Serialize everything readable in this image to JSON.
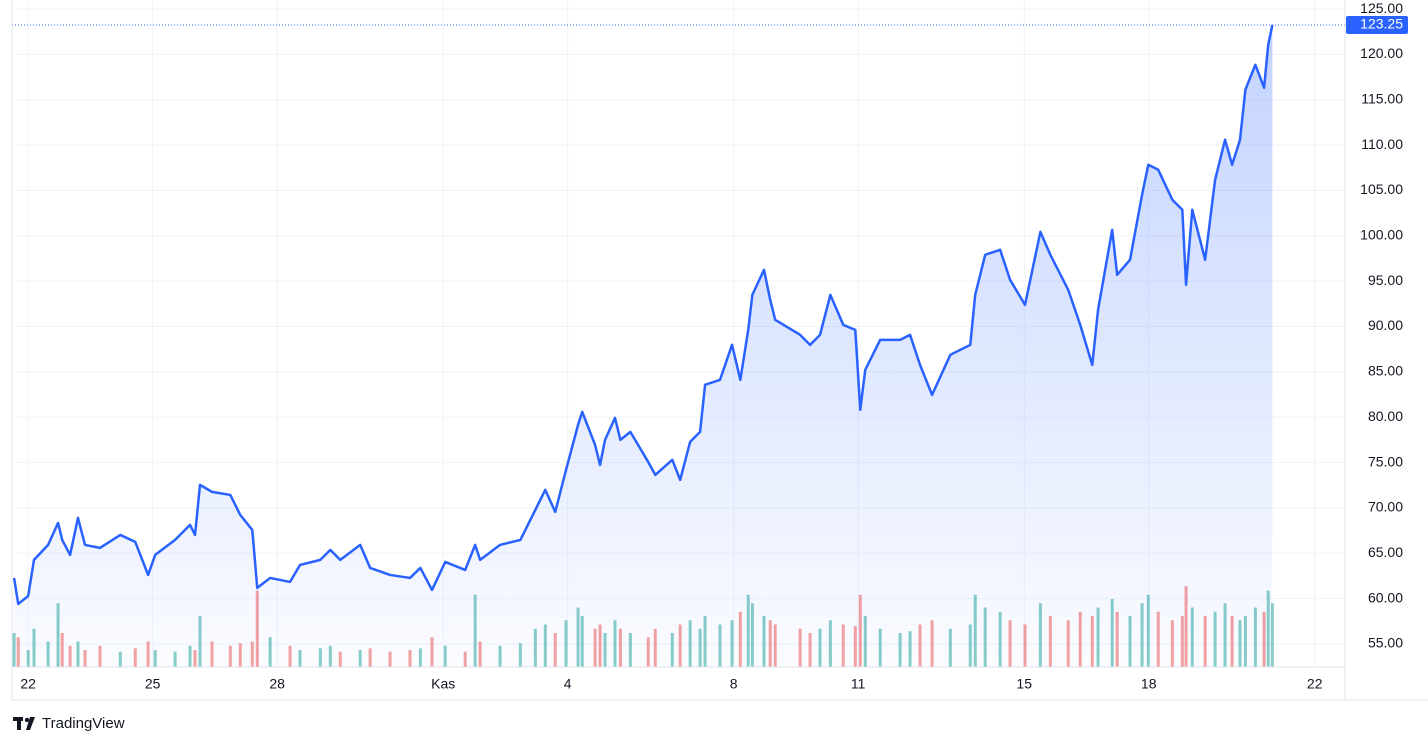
{
  "chart_data": {
    "type": "area",
    "brand": "TradingView",
    "color": "#2962ff",
    "up_color": "#26a69a",
    "down_color": "#ef5350",
    "last_price": 123.25,
    "grid": true,
    "xlim": [
      -0.39,
      31.73
    ],
    "ylim": [
      52.46,
      126
    ],
    "volume_lim": [
      0,
      100
    ],
    "xticks": [
      {
        "value": 0,
        "label": "22"
      },
      {
        "value": 3,
        "label": "25"
      },
      {
        "value": 6,
        "label": "28"
      },
      {
        "value": 10,
        "label": "Kas"
      },
      {
        "value": 13,
        "label": "4"
      },
      {
        "value": 17,
        "label": "8"
      },
      {
        "value": 20,
        "label": "11"
      },
      {
        "value": 24,
        "label": "15"
      },
      {
        "value": 27,
        "label": "18"
      },
      {
        "value": 31,
        "label": "22"
      }
    ],
    "yticks": [
      {
        "value": 55,
        "label": "55.00"
      },
      {
        "value": 60,
        "label": "60.00"
      },
      {
        "value": 65,
        "label": "65.00"
      },
      {
        "value": 70,
        "label": "70.00"
      },
      {
        "value": 75,
        "label": "75.00"
      },
      {
        "value": 80,
        "label": "80.00"
      },
      {
        "value": 85,
        "label": "85.00"
      },
      {
        "value": 90,
        "label": "90.00"
      },
      {
        "value": 95,
        "label": "95.00"
      },
      {
        "value": 100,
        "label": "100.00"
      },
      {
        "value": 105,
        "label": "105.00"
      },
      {
        "value": 110,
        "label": "110.00"
      },
      {
        "value": 115,
        "label": "115.00"
      },
      {
        "value": 120,
        "label": "120.00"
      },
      {
        "value": 125,
        "label": "125.00"
      }
    ],
    "x": [
      -0.34,
      -0.24,
      0,
      0.14,
      0.48,
      0.72,
      0.82,
      1.01,
      1.2,
      1.37,
      1.73,
      2.22,
      2.58,
      2.89,
      3.06,
      3.54,
      3.9,
      4.02,
      4.14,
      4.43,
      4.87,
      5.11,
      5.4,
      5.52,
      5.83,
      6.31,
      6.55,
      7.04,
      7.28,
      7.52,
      8,
      8.24,
      8.72,
      9.2,
      9.45,
      9.73,
      10.05,
      10.53,
      10.77,
      10.89,
      11.37,
      11.86,
      12.22,
      12.46,
      12.7,
      12.96,
      13.25,
      13.35,
      13.66,
      13.78,
      13.9,
      14.14,
      14.27,
      14.51,
      14.94,
      15.11,
      15.52,
      15.71,
      15.95,
      16.19,
      16.31,
      16.67,
      16.96,
      17.16,
      17.35,
      17.45,
      17.73,
      17.88,
      18,
      18.6,
      18.84,
      19.08,
      19.33,
      19.64,
      19.93,
      20.05,
      20.17,
      20.53,
      21.01,
      21.25,
      21.49,
      21.78,
      22.22,
      22.7,
      22.82,
      23.06,
      23.42,
      23.66,
      24.02,
      24.39,
      24.63,
      25.06,
      25.35,
      25.64,
      25.78,
      26.12,
      26.24,
      26.55,
      26.84,
      26.99,
      27.23,
      27.57,
      27.81,
      27.9,
      28.05,
      28.36,
      28.6,
      28.84,
      29.01,
      29.2,
      29.33,
      29.57,
      29.78,
      29.88,
      29.98
    ],
    "values": [
      62.28,
      59.41,
      60.29,
      64.27,
      65.92,
      68.35,
      66.47,
      64.82,
      68.9,
      65.92,
      65.59,
      67.02,
      66.25,
      62.61,
      64.82,
      66.47,
      68.13,
      67.02,
      72.54,
      71.77,
      71.43,
      69.23,
      67.57,
      61.18,
      62.28,
      61.84,
      63.71,
      64.27,
      65.37,
      64.27,
      65.92,
      63.38,
      62.61,
      62.28,
      63.38,
      60.96,
      64.04,
      63.16,
      65.92,
      64.27,
      65.92,
      66.47,
      69.78,
      71.99,
      69.56,
      74.19,
      79.16,
      80.59,
      76.95,
      74.74,
      77.5,
      79.93,
      77.5,
      78.38,
      75.07,
      73.64,
      75.3,
      73.09,
      77.28,
      78.38,
      83.57,
      84.12,
      87.98,
      84.12,
      89.63,
      93.49,
      96.25,
      92.94,
      90.74,
      89.08,
      87.98,
      89.08,
      93.49,
      90.18,
      89.63,
      80.81,
      85.22,
      88.53,
      88.53,
      89.08,
      85.77,
      82.46,
      86.88,
      87.98,
      93.49,
      97.91,
      98.46,
      95.15,
      92.39,
      100.44,
      97.91,
      94.05,
      90.18,
      85.77,
      91.84,
      100.66,
      95.7,
      97.36,
      104.52,
      107.83,
      107.28,
      103.97,
      102.87,
      94.6,
      102.87,
      97.36,
      106.18,
      110.59,
      107.83,
      110.59,
      116.11,
      118.86,
      116.33,
      121.07,
      123.25
    ],
    "volume": [
      40,
      35,
      20,
      45,
      30,
      75,
      40,
      25,
      30,
      20,
      25,
      18,
      22,
      30,
      20,
      18,
      25,
      20,
      60,
      30,
      25,
      28,
      30,
      90,
      35,
      25,
      20,
      22,
      25,
      18,
      20,
      22,
      18,
      20,
      22,
      35,
      25,
      18,
      85,
      30,
      25,
      28,
      45,
      50,
      40,
      55,
      70,
      60,
      45,
      50,
      40,
      55,
      45,
      40,
      35,
      45,
      40,
      50,
      55,
      45,
      60,
      50,
      55,
      65,
      85,
      75,
      60,
      55,
      50,
      45,
      40,
      45,
      55,
      50,
      48,
      85,
      60,
      45,
      40,
      42,
      50,
      55,
      45,
      50,
      85,
      70,
      65,
      55,
      50,
      75,
      60,
      55,
      65,
      60,
      70,
      80,
      65,
      60,
      75,
      85,
      65,
      55,
      60,
      95,
      70,
      60,
      65,
      75,
      60,
      55,
      60,
      70,
      65,
      90,
      75
    ]
  }
}
